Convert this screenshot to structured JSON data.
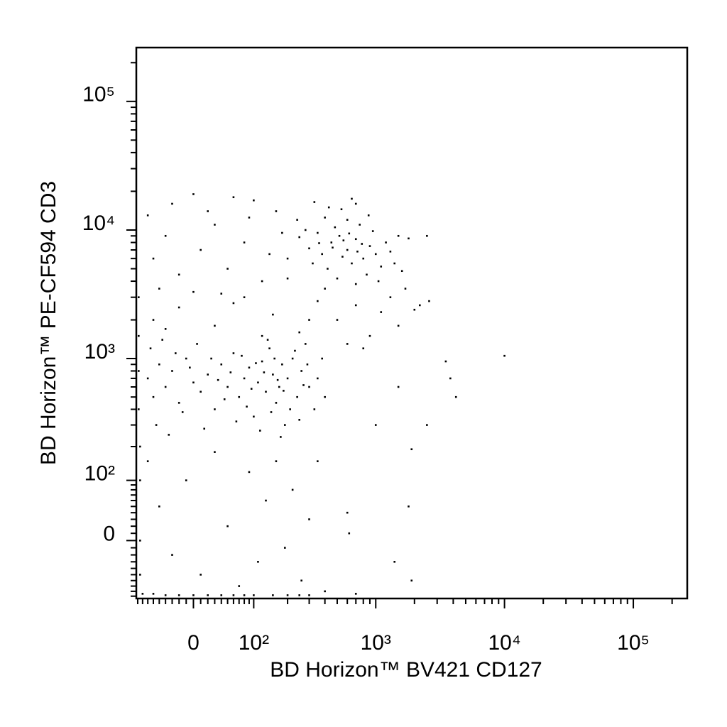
{
  "chart_data": {
    "type": "scatter",
    "x_label": "BD Horizon™ BV421 CD127",
    "y_label": "BD Horizon™ PE-CF594 CD3",
    "xscale": "biexponential",
    "yscale": "biexponential",
    "color": "#000000",
    "xlim": [
      -93,
      262144
    ],
    "ylim": [
      -95,
      262144
    ],
    "xticks": [
      0,
      {
        "value": 100,
        "label": "10²"
      },
      {
        "value": 1000,
        "label": "10³"
      },
      {
        "value": 10000,
        "label": "10⁴"
      },
      {
        "value": 100000,
        "label": "10⁵"
      }
    ],
    "yticks": [
      0,
      {
        "value": 100,
        "label": "10²"
      },
      {
        "value": 1000,
        "label": "10³"
      },
      {
        "value": 10000,
        "label": "10⁴"
      },
      {
        "value": 100000,
        "label": "10⁵"
      }
    ],
    "xminorticks": [
      -90,
      -80,
      -70,
      -60,
      -50,
      -40,
      -30,
      -20,
      -10,
      10,
      20,
      30,
      40,
      50,
      60,
      70,
      80,
      90,
      200,
      300,
      400,
      500,
      600,
      700,
      800,
      900,
      2000,
      3000,
      4000,
      5000,
      6000,
      7000,
      8000,
      9000,
      20000,
      30000,
      40000,
      50000,
      60000,
      70000,
      80000,
      90000,
      200000
    ],
    "yminorticks": [
      -90,
      -80,
      -70,
      -60,
      -50,
      -40,
      -30,
      -20,
      -10,
      10,
      20,
      30,
      40,
      50,
      60,
      70,
      80,
      90,
      200,
      300,
      400,
      500,
      600,
      700,
      800,
      900,
      2000,
      3000,
      4000,
      5000,
      6000,
      7000,
      8000,
      9000,
      20000,
      30000,
      40000,
      50000,
      60000,
      70000,
      80000,
      90000,
      200000
    ],
    "x": [
      450,
      520,
      600,
      700,
      380,
      800,
      900,
      650,
      480,
      550,
      300,
      350,
      420,
      750,
      1000,
      1200,
      1100,
      850,
      600,
      250,
      200,
      500,
      950,
      700,
      400,
      320,
      1300,
      1500,
      880,
      560,
      460,
      620,
      720,
      780,
      360,
      280,
      1050,
      1400,
      240,
      180,
      160,
      700,
      1800,
      2500,
      1600,
      1700,
      650,
      540,
      430,
      330,
      -60,
      -40,
      -70,
      -20,
      10,
      30,
      50,
      80,
      100,
      120,
      60,
      -50,
      20,
      140,
      90,
      0,
      40,
      -30,
      -70,
      -60,
      -50,
      -40,
      -30,
      -20,
      -10,
      0,
      10,
      20,
      30,
      40,
      50,
      60,
      70,
      80,
      90,
      100,
      110,
      120,
      130,
      140,
      150,
      160,
      170,
      180,
      190,
      200,
      220,
      240,
      260,
      280,
      300,
      -65,
      -55,
      -45,
      -35,
      -25,
      -15,
      -5,
      5,
      15,
      25,
      35,
      45,
      55,
      65,
      75,
      85,
      95,
      105,
      115,
      125,
      135,
      145,
      155,
      165,
      175,
      185,
      210,
      230,
      250,
      270,
      290,
      350,
      400,
      330,
      380,
      -60,
      -20,
      30,
      80,
      150,
      250,
      350,
      500,
      700,
      900,
      1100,
      1500,
      2000,
      600,
      400,
      200,
      0,
      120,
      800,
      1300,
      2200,
      -40,
      60,
      300,
      -70,
      -50,
      -30,
      -10,
      10,
      30,
      50,
      70,
      90,
      110,
      130,
      160,
      190,
      220,
      260,
      300,
      350,
      400,
      -80,
      -60,
      -40,
      -20,
      0,
      20,
      40,
      60,
      80,
      100,
      150,
      200,
      250,
      300,
      600,
      620,
      700,
      -85,
      -85,
      -85,
      -85,
      -88,
      -88,
      -88,
      -88,
      10000,
      3500,
      4200,
      2500,
      1900,
      1800,
      1400,
      1900,
      3800,
      1500,
      2600,
      1000
    ],
    "y": [
      8000,
      9000,
      7000,
      8500,
      6500,
      6000,
      7500,
      5500,
      10500,
      6200,
      7200,
      9500,
      5000,
      11000,
      6500,
      8000,
      5200,
      4500,
      12000,
      8800,
      6000,
      4200,
      9800,
      3800,
      12500,
      5500,
      6800,
      9000,
      13000,
      8300,
      7300,
      9400,
      6800,
      7800,
      7900,
      10000,
      4000,
      5500,
      12000,
      9500,
      14000,
      16000,
      8600,
      9000,
      4800,
      3500,
      17500,
      14500,
      15000,
      16500,
      6000,
      9000,
      13000,
      4500,
      7000,
      11000,
      5000,
      8000,
      17000,
      4000,
      18000,
      3500,
      14000,
      6500,
      12500,
      19000,
      3200,
      16000,
      700,
      500,
      900,
      600,
      800,
      450,
      1000,
      650,
      550,
      750,
      400,
      900,
      600,
      1100,
      500,
      700,
      850,
      350,
      650,
      950,
      550,
      1200,
      750,
      450,
      600,
      900,
      300,
      700,
      1000,
      500,
      800,
      1300,
      600,
      1200,
      300,
      1400,
      250,
      1100,
      380,
      850,
      1300,
      280,
      1000,
      680,
      480,
      780,
      320,
      1050,
      420,
      580,
      920,
      270,
      780,
      1400,
      380,
      1000,
      680,
      240,
      560,
      400,
      1150,
      330,
      620,
      900,
      700,
      500,
      400,
      1000,
      2000,
      2500,
      1800,
      3000,
      2200,
      1600,
      2800,
      2000,
      2600,
      1500,
      2300,
      1800,
      2400,
      1300,
      3500,
      4200,
      3300,
      1500,
      1200,
      3000,
      2600,
      1700,
      2700,
      2000,
      150,
      50,
      -20,
      100,
      -50,
      180,
      20,
      -70,
      120,
      -30,
      60,
      150,
      -10,
      80,
      -60,
      30,
      150,
      -80,
      -85,
      -85,
      -88,
      -88,
      -88,
      -88,
      -88,
      -88,
      -88,
      -88,
      -88,
      -88,
      -88,
      -88,
      40,
      10,
      -85,
      200,
      100,
      0,
      -50,
      400,
      800,
      1500,
      3000,
      1050,
      950,
      500,
      300,
      190,
      50,
      -30,
      -60,
      700,
      600,
      2800,
      300
    ]
  }
}
